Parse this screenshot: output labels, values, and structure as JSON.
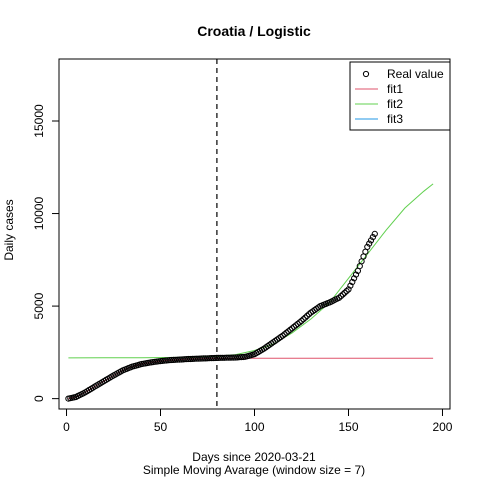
{
  "chart_data": {
    "type": "line",
    "title": "Croatia / Logistic",
    "xlabel": "Days since 2020-03-21",
    "subtitle": "Simple Moving Avarage (window size = 7)",
    "ylabel": "Daily cases",
    "xlim": [
      -4,
      204
    ],
    "ylim": [
      -560,
      18350
    ],
    "xticks": [
      0,
      50,
      100,
      150,
      200
    ],
    "yticks": [
      0,
      5000,
      10000,
      15000
    ],
    "cutoff_x": 80,
    "grid": false,
    "legend_position": "top-right",
    "legend": [
      {
        "label": "Real value",
        "kind": "point",
        "color": "#000000"
      },
      {
        "label": "fit1",
        "kind": "line",
        "color": "#DF536B"
      },
      {
        "label": "fit2",
        "kind": "line",
        "color": "#61D04F"
      },
      {
        "label": "fit3",
        "kind": "line",
        "color": "#2297E6"
      }
    ],
    "series": [
      {
        "name": "Real value",
        "kind": "points",
        "color": "#000000",
        "x_range": [
          1,
          164
        ],
        "knots_x": [
          1,
          5,
          10,
          15,
          20,
          25,
          30,
          35,
          40,
          45,
          50,
          55,
          60,
          65,
          70,
          75,
          80,
          85,
          90,
          95,
          100,
          105,
          110,
          115,
          120,
          125,
          130,
          135,
          140,
          145,
          150,
          155,
          160,
          164
        ],
        "knots_y": [
          0,
          90,
          340,
          650,
          950,
          1250,
          1530,
          1730,
          1870,
          1960,
          2030,
          2080,
          2110,
          2140,
          2160,
          2180,
          2200,
          2210,
          2220,
          2260,
          2400,
          2700,
          3050,
          3400,
          3800,
          4200,
          4650,
          5000,
          5200,
          5450,
          5900,
          6900,
          8200,
          8900
        ]
      },
      {
        "name": "fit1",
        "kind": "line",
        "color": "#DF536B",
        "x": [
          1,
          5,
          10,
          15,
          20,
          25,
          30,
          35,
          40,
          45,
          50,
          55,
          60,
          65,
          70,
          75,
          80,
          90,
          100,
          120,
          150,
          195
        ],
        "y": [
          0,
          90,
          340,
          650,
          950,
          1250,
          1530,
          1730,
          1870,
          1960,
          2030,
          2080,
          2110,
          2140,
          2160,
          2170,
          2175,
          2178,
          2180,
          2180,
          2180,
          2180
        ]
      },
      {
        "name": "fit2",
        "kind": "line",
        "color": "#61D04F",
        "x": [
          1,
          20,
          40,
          60,
          80,
          90,
          100,
          110,
          120,
          130,
          140,
          150,
          160,
          170,
          180,
          190,
          195
        ],
        "y": [
          2200,
          2205,
          2210,
          2230,
          2290,
          2380,
          2600,
          2950,
          3550,
          4300,
          5200,
          6500,
          7800,
          9100,
          10300,
          11200,
          11600
        ]
      },
      {
        "name": "fit3",
        "kind": "line",
        "color": "#2297E6",
        "x": [],
        "y": []
      }
    ]
  }
}
